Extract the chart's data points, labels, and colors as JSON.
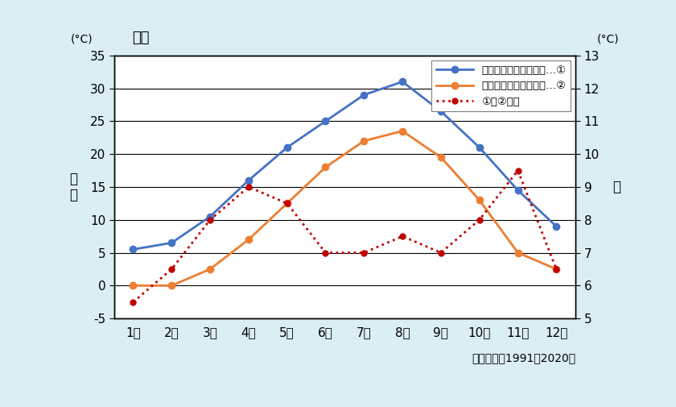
{
  "months": [
    1,
    2,
    3,
    4,
    5,
    6,
    7,
    8,
    9,
    10,
    11,
    12
  ],
  "month_labels": [
    "1月",
    "2月",
    "3月",
    "4月",
    "5月",
    "6月",
    "7月",
    "8月",
    "9月",
    "10月",
    "11月",
    "12月"
  ],
  "max_temp": [
    5.5,
    6.5,
    10.5,
    16.0,
    21.0,
    25.0,
    29.0,
    31.0,
    26.5,
    21.0,
    14.5,
    9.0
  ],
  "min_temp": [
    0.0,
    0.0,
    2.5,
    7.0,
    12.5,
    18.0,
    22.0,
    23.5,
    19.5,
    13.0,
    5.0,
    2.5
  ],
  "diff": [
    5.5,
    6.5,
    8.0,
    9.0,
    8.5,
    7.0,
    7.0,
    7.5,
    7.0,
    8.0,
    9.5,
    6.5
  ],
  "blue_color": "#4472C4",
  "orange_color": "#ED7D31",
  "red_color": "#C00000",
  "left_ylim": [
    -5,
    35
  ],
  "left_yticks": [
    -5,
    0,
    5,
    10,
    15,
    20,
    25,
    30,
    35
  ],
  "right_ylim": [
    5,
    13
  ],
  "right_yticks": [
    5,
    6,
    7,
    8,
    9,
    10,
    11,
    12,
    13
  ],
  "title_city": "新潟",
  "ylabel_left": "気\n温",
  "ylabel_right": "差",
  "unit_left": "(°C)",
  "unit_right": "(°C)",
  "xlabel_note": "（平年値：1991～2020）",
  "legend1": "日最高気温の月平均値…①",
  "legend2": "日最低気温の月平均値…②",
  "legend3": "①と②の差",
  "bg_color": "#DAEEF3",
  "plot_bg_color": "#FFFFFF",
  "grid_color": "#000000"
}
